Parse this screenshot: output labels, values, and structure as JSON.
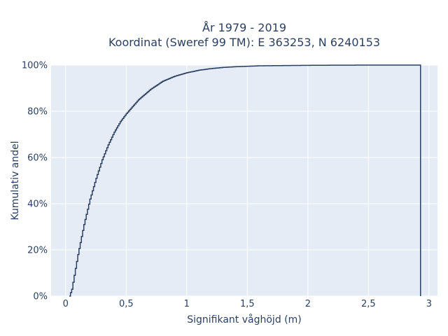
{
  "chart_data": {
    "type": "line",
    "line_shape": "step",
    "title_lines": [
      "År 1979 - 2019",
      "Koordinat (Sweref 99 TM): E 363253, N 6240153"
    ],
    "xlabel": "Signifikant våghöjd (m)",
    "ylabel": "Kumulativ andel",
    "xlim": [
      -0.12,
      3.07
    ],
    "ylim": [
      0,
      1.0
    ],
    "x_ticks": [
      0,
      0.5,
      1,
      1.5,
      2,
      2.5,
      3
    ],
    "x_tick_labels": [
      "0",
      "0,5",
      "1",
      "1,5",
      "2",
      "2,5",
      "3"
    ],
    "y_ticks": [
      0,
      0.2,
      0.4,
      0.6,
      0.8,
      1.0
    ],
    "y_tick_labels": [
      "0%",
      "20%",
      "40%",
      "60%",
      "80%",
      "100%"
    ],
    "grid": true,
    "plot_background": "#e5ecf6",
    "line_color": "#2a3f5f",
    "series": [
      {
        "x": [
          0.03,
          0.05,
          0.1,
          0.15,
          0.2,
          0.25,
          0.3,
          0.35,
          0.4,
          0.45,
          0.5,
          0.6,
          0.7,
          0.8,
          0.9,
          1.0,
          1.1,
          1.2,
          1.3,
          1.4,
          1.5,
          1.6,
          1.8,
          2.0,
          2.2,
          2.5,
          2.93,
          2.93
        ],
        "y": [
          0.0,
          0.03,
          0.18,
          0.31,
          0.42,
          0.51,
          0.59,
          0.655,
          0.71,
          0.755,
          0.79,
          0.85,
          0.895,
          0.93,
          0.952,
          0.967,
          0.978,
          0.985,
          0.99,
          0.993,
          0.995,
          0.997,
          0.998,
          0.999,
          0.9995,
          1.0,
          1.0,
          0.0
        ]
      }
    ]
  }
}
